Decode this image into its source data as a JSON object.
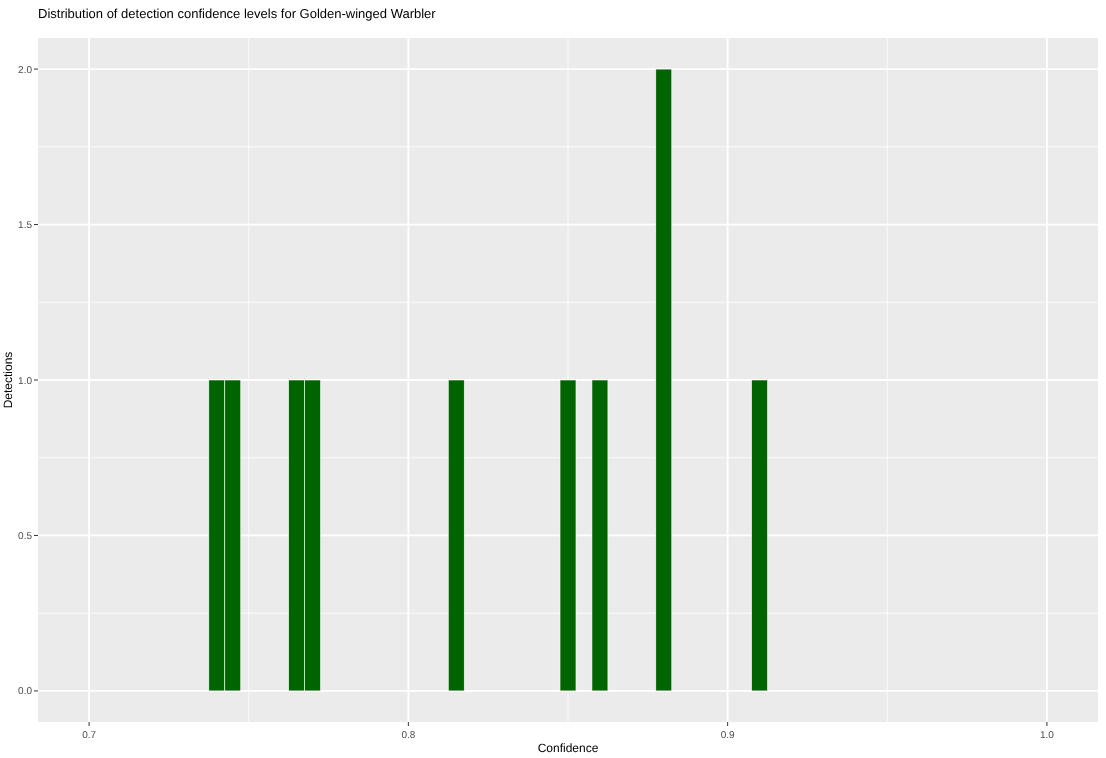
{
  "chart_data": {
    "type": "histogram",
    "title": "Distribution of detection confidence levels for Golden-winged Warbler",
    "xlabel": "Confidence",
    "ylabel": "Detections",
    "bins": [
      0.7375,
      0.7425,
      0.7475,
      0.7525,
      0.7575,
      0.7625,
      0.7675,
      0.7725,
      0.7775,
      0.7825,
      0.7875,
      0.7925,
      0.7975,
      0.8025,
      0.8075,
      0.8125,
      0.8175,
      0.8225,
      0.8275,
      0.8325,
      0.8375,
      0.8425,
      0.8475,
      0.8525,
      0.8575,
      0.8625,
      0.8675,
      0.8725,
      0.8775,
      0.8825,
      0.8875,
      0.8925,
      0.8975,
      0.9025,
      0.9075,
      0.9125
    ],
    "values": [
      1,
      1,
      0,
      0,
      0,
      1,
      1,
      0,
      0,
      0,
      0,
      0,
      0,
      0,
      0,
      1,
      0,
      0,
      0,
      0,
      0,
      0,
      1,
      0,
      1,
      0,
      0,
      0,
      2,
      0,
      0,
      0,
      0,
      0,
      1
    ],
    "color": "#006400",
    "xlim": [
      0.684,
      1.016
    ],
    "xticks": [
      0.7,
      0.8,
      0.9,
      {
        "value": 1,
        "label": "1.0"
      }
    ],
    "ylim": [
      -0.1,
      2.1
    ],
    "yticks": [
      {
        "value": 0,
        "label": "0.0"
      },
      0.5,
      {
        "value": 1,
        "label": "1.0"
      },
      1.5,
      {
        "value": 2,
        "label": "2.0"
      }
    ],
    "grid": true
  }
}
